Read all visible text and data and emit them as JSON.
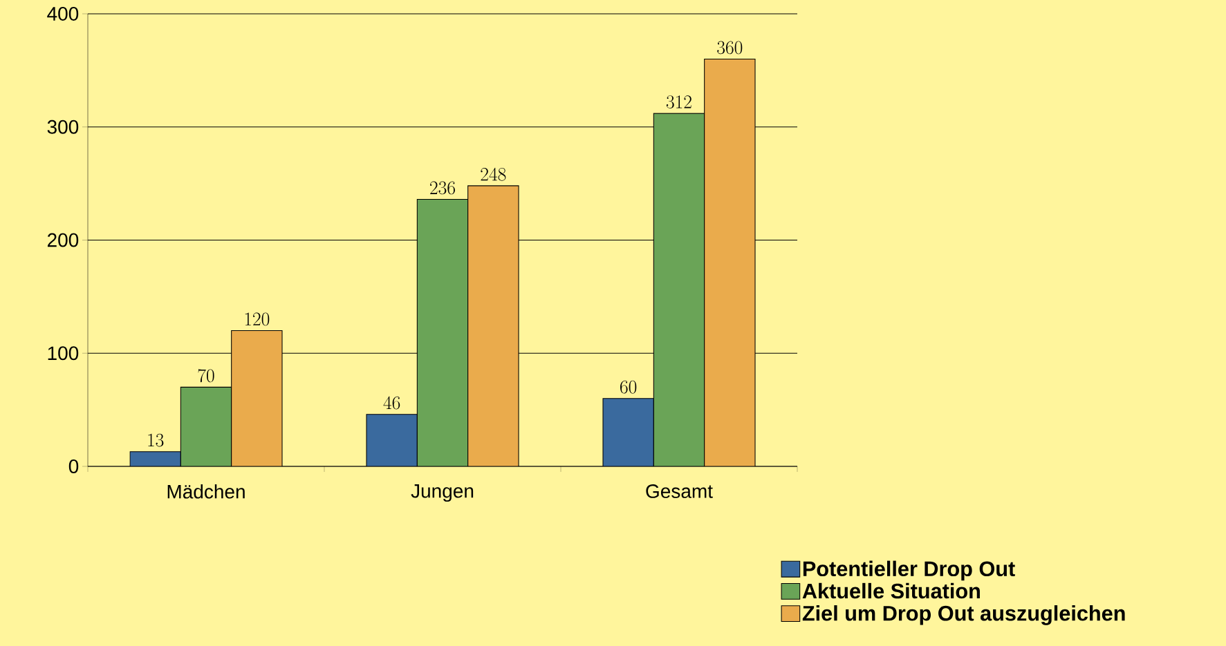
{
  "chart_data": {
    "type": "bar",
    "categories": [
      "Mädchen",
      "Jungen",
      "Gesamt"
    ],
    "series": [
      {
        "name": "Potentieller Drop Out",
        "color": "#3a6a9e",
        "values": [
          13,
          46,
          60
        ]
      },
      {
        "name": "Aktuelle Situation",
        "color": "#6aa457",
        "values": [
          70,
          236,
          312
        ]
      },
      {
        "name": "Ziel um Drop Out auszugleichen",
        "color": "#eaab4c",
        "values": [
          120,
          248,
          360
        ]
      }
    ],
    "ylim": [
      0,
      400
    ],
    "yticks": [
      0,
      100,
      200,
      300,
      400
    ],
    "grid": "y",
    "legend": "bottom right",
    "data_labels": true
  }
}
